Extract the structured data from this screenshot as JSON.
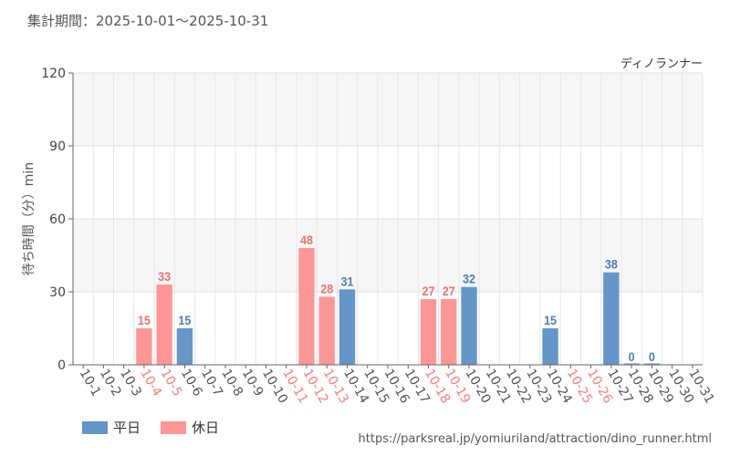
{
  "header": {
    "period_label": "集計期間：2025-10-01～2025-10-31"
  },
  "chart_data": {
    "type": "bar",
    "title": "ディノランナー",
    "ylabel": "待ち時間（分）min",
    "xlabel": "",
    "ylim": [
      0,
      120
    ],
    "yticks": [
      0,
      30,
      60,
      90,
      120
    ],
    "categories": [
      "10-1",
      "10-2",
      "10-3",
      "10-4",
      "10-5",
      "10-6",
      "10-7",
      "10-8",
      "10-9",
      "10-10",
      "10-11",
      "10-12",
      "10-13",
      "10-14",
      "10-15",
      "10-16",
      "10-17",
      "10-18",
      "10-19",
      "10-20",
      "10-21",
      "10-22",
      "10-23",
      "10-24",
      "10-25",
      "10-26",
      "10-27",
      "10-28",
      "10-29",
      "10-30",
      "10-31"
    ],
    "day_type": [
      "weekday",
      "weekday",
      "weekday",
      "holiday",
      "holiday",
      "weekday",
      "weekday",
      "weekday",
      "weekday",
      "weekday",
      "holiday",
      "holiday",
      "holiday",
      "weekday",
      "weekday",
      "weekday",
      "weekday",
      "holiday",
      "holiday",
      "weekday",
      "weekday",
      "weekday",
      "weekday",
      "weekday",
      "holiday",
      "holiday",
      "weekday",
      "weekday",
      "weekday",
      "weekday",
      "weekday"
    ],
    "values": [
      null,
      null,
      null,
      15,
      33,
      15,
      null,
      null,
      null,
      null,
      null,
      48,
      28,
      31,
      null,
      null,
      null,
      27,
      27,
      32,
      null,
      null,
      null,
      15,
      null,
      null,
      38,
      0,
      0,
      null,
      null
    ],
    "series": [
      {
        "name": "平日",
        "key": "weekday",
        "color": "#6496c8"
      },
      {
        "name": "休日",
        "key": "holiday",
        "color": "#ff9696"
      }
    ],
    "label_colors": {
      "weekday": "#555555",
      "holiday": "#ff7b7b"
    },
    "value_label_colors": {
      "weekday": "#4a7fb5",
      "holiday": "#f07070"
    },
    "legend_position": "bottom-left"
  },
  "footer": {
    "source_url": "https://parksreal.jp/yomiuriland/attraction/dino_runner.html"
  }
}
